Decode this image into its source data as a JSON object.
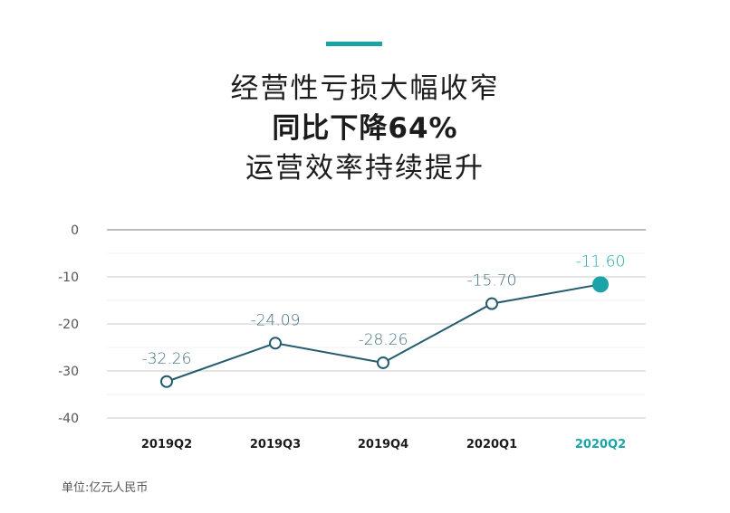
{
  "header": {
    "line1": "经营性亏损大幅收窄",
    "line2": "同比下降64%",
    "line3": "运营效率持续提升"
  },
  "footer": {
    "unit": "单位:亿元人民币"
  },
  "colors": {
    "accent": "#1ba4a8",
    "line": "#245c6e",
    "label": "#3f6f80",
    "grid": "#c9c9c9"
  },
  "chart_data": {
    "type": "line",
    "title": "经营性亏损大幅收窄 同比下降64% 运营效率持续提升",
    "xlabel": "",
    "ylabel": "",
    "unit": "亿元人民币",
    "categories": [
      "2019Q2",
      "2019Q3",
      "2019Q4",
      "2020Q1",
      "2020Q2"
    ],
    "values": [
      -32.26,
      -24.09,
      -28.26,
      -15.7,
      -11.6
    ],
    "labels": [
      "-32.26",
      "-24.09",
      "-28.26",
      "-15.70",
      "-11.60"
    ],
    "yticks": [
      0,
      -10,
      -20,
      -30,
      -40
    ],
    "ylim": [
      -40,
      0
    ],
    "grid": true,
    "highlight_index": 4
  }
}
